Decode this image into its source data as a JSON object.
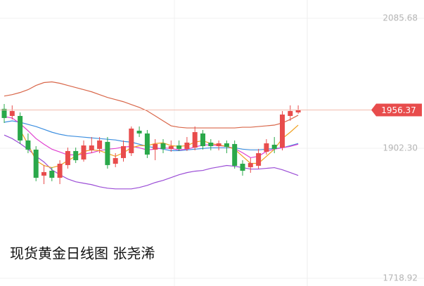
{
  "chart_data": {
    "type": "candlestick",
    "title": "现货黄金日线图 张尧浠",
    "ylim": [
      1708.0,
      2111.5
    ],
    "yticks": [
      2085.68,
      {
        "value": 1902.3,
        "label": "1902.30"
      },
      1718.92
    ],
    "up_color": "#e84c4c",
    "down_color": "#2aa84a",
    "open": [
      1957.9,
      1947.9,
      1947.9,
      1913.3,
      1900.4,
      1863.7,
      1870.6,
      1860.7,
      1878.6,
      1898.4,
      1886.5,
      1899.4,
      1901.4,
      1911.3,
      1880.5,
      1888.5,
      1895.4,
      1927.1,
      1923.2,
      1900.4,
      1909.3,
      1901.4,
      1906.3,
      1901.4,
      1903.3,
      1923.2,
      1910.3,
      1905.3,
      1909.3,
      1908.3,
      1880.5,
      1875.6,
      1877.6,
      1897.4,
      1907.3,
      1903.3,
      1947.9,
      1952.9
    ],
    "high": [
      1964.8,
      1962.8,
      1952.9,
      1923.2,
      1905.3,
      1878.6,
      1875.6,
      1885.5,
      1903.3,
      1903.3,
      1913.3,
      1918.2,
      1918.2,
      1918.2,
      1895.4,
      1913.3,
      1933.1,
      1933.1,
      1928.1,
      1915.2,
      1915.2,
      1913.3,
      1913.3,
      1918.2,
      1933.1,
      1928.1,
      1915.2,
      1913.3,
      1913.3,
      1913.3,
      1885.5,
      1888.5,
      1901.4,
      1915.2,
      1918.2,
      1954.9,
      1962.8,
      1962.8
    ],
    "low": [
      1938.0,
      1943.0,
      1908.3,
      1895.4,
      1855.8,
      1851.8,
      1855.8,
      1851.8,
      1873.6,
      1881.5,
      1883.5,
      1895.4,
      1895.4,
      1873.6,
      1875.6,
      1883.5,
      1891.4,
      1918.2,
      1888.5,
      1885.5,
      1895.4,
      1897.4,
      1898.4,
      1898.4,
      1899.4,
      1900.4,
      1899.4,
      1899.4,
      1895.4,
      1873.6,
      1863.7,
      1867.7,
      1873.6,
      1893.4,
      1895.4,
      1899.4,
      1941.0,
      1950.9
    ],
    "close": [
      1945.0,
      1954.9,
      1913.3,
      1900.4,
      1860.7,
      1868.7,
      1860.7,
      1880.5,
      1898.4,
      1885.5,
      1906.3,
      1906.3,
      1913.3,
      1878.6,
      1888.5,
      1905.3,
      1930.1,
      1923.2,
      1893.4,
      1908.3,
      1901.4,
      1905.3,
      1901.4,
      1910.3,
      1925.1,
      1905.3,
      1905.3,
      1909.3,
      1904.3,
      1877.6,
      1870.6,
      1881.5,
      1895.4,
      1909.3,
      1901.4,
      1949.9,
      1954.9,
      1956.37
    ],
    "series": [
      {
        "color": "#d9674a",
        "values": [
          1976,
          1978,
          1981,
          1985,
          1991,
          1995,
          1996,
          1994,
          1991,
          1988,
          1985,
          1982,
          1978,
          1974,
          1971,
          1968,
          1964,
          1960,
          1955,
          1948,
          1941,
          1934,
          1932,
          1931,
          1931,
          1931,
          1931,
          1931,
          1931,
          1931,
          1932,
          1932,
          1933,
          1934,
          1935,
          1938,
          1943,
          1949
        ]
      },
      {
        "color": "#9b4dd6",
        "values": [
          1921,
          1916,
          1909,
          1901,
          1891,
          1883,
          1872,
          1865,
          1859,
          1855,
          1853,
          1851,
          1848,
          1846,
          1845,
          1845,
          1845,
          1847,
          1850,
          1854,
          1857,
          1861,
          1865,
          1868,
          1870,
          1871,
          1874,
          1876,
          1878,
          1877,
          1875,
          1873,
          1873,
          1874,
          1875,
          1872,
          1868,
          1864
        ]
      },
      {
        "color": "#3d8fe0",
        "values": [
          1939,
          1941,
          1939,
          1936,
          1933,
          1929,
          1925,
          1922,
          1920,
          1919,
          1918,
          1917,
          1916,
          1915,
          1914,
          1912,
          1911,
          1908,
          1905,
          1903,
          1901,
          1899,
          1899,
          1900,
          1901,
          1902,
          1903,
          1903,
          1903,
          1903,
          1901,
          1900,
          1900,
          1901,
          1902,
          1903,
          1906,
          1909
        ]
      },
      {
        "color": "#e040d0",
        "values": [
          1947,
          1945,
          1937,
          1927,
          1916,
          1908,
          1901,
          1897,
          1893,
          1893,
          1894,
          1896,
          1899,
          1901,
          1902,
          1904,
          1905,
          1903,
          1900,
          1901,
          1903,
          1902,
          1900,
          1901,
          1904,
          1907,
          1907,
          1906,
          1905,
          1902,
          1896,
          1889,
          1891,
          1898,
          1901,
          1903,
          1905,
          1908
        ]
      },
      {
        "color": "#f0a020",
        "values": [
          null,
          null,
          1928,
          1908,
          1885,
          1878,
          1875,
          1878,
          1885,
          1891,
          1898,
          1900,
          1899,
          1895,
          1891,
          1896,
          1903,
          1906,
          1906,
          1909,
          1910,
          1906,
          1905,
          1906,
          1911,
          1913,
          1909,
          1907,
          1905,
          1901,
          1891,
          1881,
          1881,
          1891,
          1901,
          1916,
          1925,
          1935
        ]
      }
    ],
    "price_line": {
      "value": 1956.37,
      "color": "#e84c4c",
      "line_color": "#f2bcae"
    }
  }
}
